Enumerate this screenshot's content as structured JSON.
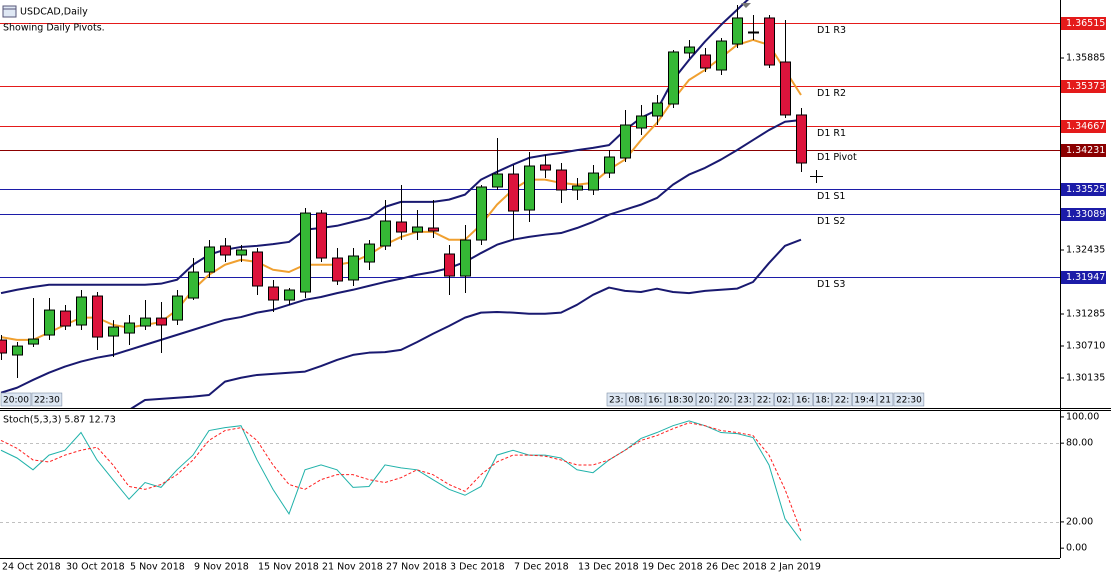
{
  "chart_data": [
    {
      "type": "candlestick",
      "title": "USDCAD,Daily",
      "subtitle": "Showing Daily Pivots.",
      "categories": [
        "24 Oct 2018",
        null,
        null,
        null,
        "30 Oct 2018",
        null,
        null,
        null,
        "5 Nov 2018",
        null,
        null,
        null,
        "9 Nov 2018",
        null,
        null,
        null,
        "15 Nov 2018",
        null,
        null,
        null,
        "21 Nov 2018",
        null,
        null,
        null,
        "27 Nov 2018",
        null,
        null,
        null,
        "3 Dec 2018",
        null,
        null,
        null,
        "7 Dec 2018",
        null,
        null,
        null,
        "13 Dec 2018",
        null,
        null,
        null,
        "19 Dec 2018",
        null,
        null,
        null,
        "26 Dec 2018",
        null,
        null,
        null,
        "2 Jan 2019",
        null,
        null
      ],
      "open": [
        1.30817,
        1.30548,
        1.30745,
        1.30907,
        1.31338,
        1.31087,
        1.31608,
        1.30889,
        1.30943,
        1.31069,
        1.31212,
        1.31176,
        1.31572,
        1.32039,
        1.32507,
        1.32345,
        1.32399,
        1.3177,
        1.31536,
        1.3168,
        1.33099,
        1.32291,
        1.31896,
        1.32219,
        1.32507,
        1.32938,
        1.32758,
        1.3283,
        1.32363,
        1.31967,
        1.32614,
        1.33567,
        1.338,
        1.33153,
        1.33962,
        1.33872,
        1.33513,
        1.33513,
        1.33818,
        1.34088,
        1.34627,
        1.34843,
        1.35058,
        1.35975,
        1.35939,
        1.35669,
        1.36136,
        1.36352,
        1.36604,
        1.35813,
        1.34861
      ],
      "high": [
        1.30907,
        1.30781,
        1.31572,
        1.31572,
        1.31446,
        1.31716,
        1.3168,
        1.31176,
        1.31266,
        1.31536,
        1.315,
        1.31716,
        1.32291,
        1.32614,
        1.3265,
        1.32525,
        1.32471,
        1.31896,
        1.31752,
        1.33189,
        1.33153,
        1.32471,
        1.32471,
        1.32614,
        1.33333,
        1.33603,
        1.33153,
        1.33333,
        1.32525,
        1.32884,
        1.33603,
        1.34447,
        1.33962,
        1.34196,
        1.34142,
        1.33998,
        1.33728,
        1.33962,
        1.34232,
        1.3495,
        1.3504,
        1.3522,
        1.36028,
        1.36208,
        1.36064,
        1.36244,
        1.36837,
        1.36657,
        1.36657,
        1.36568,
        1.34986
      ],
      "low": [
        1.30458,
        1.30135,
        1.30691,
        1.30817,
        1.30997,
        1.30997,
        1.30638,
        1.30512,
        1.30727,
        1.30997,
        1.30584,
        1.31087,
        1.31536,
        1.31931,
        1.32219,
        1.32219,
        1.31626,
        1.3132,
        1.31446,
        1.31572,
        1.32219,
        1.31806,
        1.31788,
        1.32075,
        1.32435,
        1.32614,
        1.32614,
        1.3265,
        1.31626,
        1.31662,
        1.32525,
        1.33513,
        1.32614,
        1.32938,
        1.33728,
        1.33279,
        1.33333,
        1.33423,
        1.33728,
        1.34016,
        1.34501,
        1.34681,
        1.34986,
        1.35885,
        1.35633,
        1.35579,
        1.36064,
        1.36208,
        1.35705,
        1.34807,
        1.33836
      ],
      "close": [
        1.30584,
        1.30709,
        1.30835,
        1.31356,
        1.31069,
        1.3159,
        1.30871,
        1.31051,
        1.31123,
        1.31212,
        1.31087,
        1.31608,
        1.32039,
        1.32489,
        1.32345,
        1.32435,
        1.31788,
        1.31536,
        1.31716,
        1.33099,
        1.32291,
        1.31878,
        1.32327,
        1.32542,
        1.32956,
        1.32758,
        1.32848,
        1.32776,
        1.31967,
        1.32614,
        1.33567,
        1.338,
        1.33135,
        1.33944,
        1.33872,
        1.33513,
        1.33585,
        1.33818,
        1.34106,
        1.34681,
        1.34843,
        1.35076,
        1.35993,
        1.36082,
        1.35705,
        1.3619,
        1.36604,
        1.36334,
        1.35759,
        1.34861,
        1.33998
      ],
      "up_color": "#35b835",
      "down_color": "#dc143c",
      "overlays": [
        {
          "color": "#191970",
          "values": [
            1.3166,
            1.3172,
            1.3177,
            1.3181,
            1.3181,
            1.3181,
            1.3181,
            1.3181,
            1.3181,
            1.3181,
            1.3183,
            1.319,
            1.3217,
            1.3235,
            1.3244,
            1.3249,
            1.3251,
            1.3254,
            1.3258,
            1.328,
            1.3283,
            1.3287,
            1.3294,
            1.3301,
            1.3321,
            1.333,
            1.333,
            1.333,
            1.3334,
            1.3343,
            1.337,
            1.3384,
            1.3397,
            1.3409,
            1.3414,
            1.3418,
            1.3423,
            1.3427,
            1.3432,
            1.3459,
            1.3481,
            1.3495,
            1.3549,
            1.3585,
            1.3618,
            1.3648,
            1.3675,
            1.3702,
            1.372,
            1.3729,
            1.3733
          ]
        },
        {
          "color": "#191970",
          "values": [
            1.2987,
            1.2996,
            1.301,
            1.3023,
            1.3034,
            1.3043,
            1.305,
            1.3055,
            1.3064,
            1.3073,
            1.3082,
            1.3091,
            1.31,
            1.3109,
            1.3118,
            1.3123,
            1.3131,
            1.3136,
            1.3145,
            1.3154,
            1.3159,
            1.3166,
            1.3172,
            1.3179,
            1.3186,
            1.3192,
            1.3199,
            1.3204,
            1.3211,
            1.3222,
            1.3238,
            1.3253,
            1.3262,
            1.3267,
            1.3271,
            1.3274,
            1.3283,
            1.3294,
            1.3307,
            1.3316,
            1.3325,
            1.3337,
            1.3361,
            1.3379,
            1.3391,
            1.3406,
            1.3423,
            1.3441,
            1.3459,
            1.3474,
            1.3477
          ]
        },
        {
          "color": "#191970",
          "values": [
            null,
            null,
            null,
            null,
            null,
            null,
            null,
            null,
            1.2956,
            1.2974,
            1.2976,
            1.2978,
            1.298,
            1.2983,
            1.3007,
            1.3014,
            1.3019,
            1.3021,
            1.3023,
            1.3025,
            1.3035,
            1.3046,
            1.3055,
            1.3059,
            1.306,
            1.3064,
            1.3078,
            1.3093,
            1.3107,
            1.3122,
            1.3131,
            1.3132,
            1.3131,
            1.3129,
            1.3129,
            1.3131,
            1.3145,
            1.3163,
            1.3176,
            1.317,
            1.3168,
            1.3174,
            1.3168,
            1.3166,
            1.317,
            1.3172,
            1.3174,
            1.3186,
            1.322,
            1.3251,
            1.3262
          ]
        },
        {
          "color": "#f0a030",
          "values": [
            1.3087,
            1.3082,
            1.3082,
            1.3095,
            1.3109,
            1.3122,
            1.3122,
            1.3109,
            1.3104,
            1.3109,
            1.3114,
            1.3136,
            1.3172,
            1.3199,
            1.3217,
            1.3226,
            1.3222,
            1.3208,
            1.3204,
            1.3217,
            1.3217,
            1.3217,
            1.3222,
            1.3235,
            1.3253,
            1.3267,
            1.3276,
            1.3276,
            1.3262,
            1.3262,
            1.3289,
            1.3325,
            1.3352,
            1.337,
            1.337,
            1.3364,
            1.3361,
            1.3364,
            1.3388,
            1.3406,
            1.3441,
            1.3472,
            1.3513,
            1.3549,
            1.3567,
            1.3589,
            1.3612,
            1.3621,
            1.3612,
            1.3567,
            1.3522
          ]
        }
      ],
      "pivots": [
        {
          "label": "D1 R3",
          "value": 1.36515,
          "color": "#e41a1a"
        },
        {
          "label": "D1 R2",
          "value": 1.35373,
          "color": "#e41a1a"
        },
        {
          "label": "D1 R1",
          "value": 1.34667,
          "color": "#e41a1a"
        },
        {
          "label": "D1 Pivot",
          "value": 1.34231,
          "color": "#8b0000"
        },
        {
          "label": "D1 S1",
          "value": 1.33525,
          "color": "#1c1ca8"
        },
        {
          "label": "D1 S2",
          "value": 1.33089,
          "color": "#1c1ca8"
        },
        {
          "label": "D1 S3",
          "value": 1.31947,
          "color": "#1c1ca8"
        }
      ],
      "ylim": [
        1.29596,
        1.36927
      ],
      "yticks": [
        1.35885,
        1.32435,
        1.31285,
        {
          "value": 1.3071,
          "label": "1.30710"
        },
        1.30135
      ],
      "time_tags": {
        "left": [
          "20:00",
          "22:30"
        ],
        "right": [
          "23:",
          "08:",
          "16:",
          "18:30",
          "20:",
          "20:",
          "23:",
          "22:",
          "02:",
          "16:",
          "18:",
          "22:",
          "19:4",
          "21",
          "22:30"
        ]
      }
    },
    {
      "type": "line",
      "title": "Stoch(5,3,3) 5.87 12.73",
      "ylim": [
        -7.5,
        104.5
      ],
      "yticks": [
        {
          "value": 100,
          "label": "100.00",
          "level": false
        },
        {
          "value": 80,
          "label": "80.00",
          "level": true
        },
        {
          "value": 20,
          "label": "20.00",
          "level": true
        },
        {
          "value": 0,
          "label": "0.00",
          "level": false
        }
      ],
      "series": [
        {
          "color": "#20b2aa",
          "dash": false,
          "values": [
            74.6,
            68.7,
            59.7,
            70.9,
            74.6,
            88.1,
            67.2,
            52.2,
            37.3,
            50,
            46.3,
            59.7,
            70.9,
            89.6,
            91.8,
            93.3,
            67.2,
            44.8,
            26.1,
            59.7,
            63.4,
            59.7,
            46.3,
            47,
            63.4,
            61.2,
            59.7,
            52.2,
            44.8,
            40.3,
            47,
            70.9,
            74.6,
            70.9,
            70.9,
            68.7,
            59.7,
            57.5,
            67.2,
            74.6,
            83.6,
            88.1,
            93.3,
            97,
            93.3,
            88.1,
            87.3,
            84.3,
            63.4,
            22.4,
            5.87
          ]
        },
        {
          "color": "#ff2020",
          "dash": true,
          "values": [
            82.1,
            76.1,
            67.2,
            65.7,
            70.9,
            74.6,
            76.9,
            63.4,
            47,
            44.8,
            48.5,
            56,
            67.2,
            82.1,
            89.6,
            91.8,
            82.1,
            63.4,
            48.5,
            44.8,
            52.2,
            56,
            56,
            52.2,
            50,
            53.7,
            59.7,
            56,
            48.5,
            43.3,
            56,
            65.7,
            70.9,
            70.9,
            70.1,
            67.2,
            63.4,
            63.4,
            67.2,
            74.6,
            82.1,
            85.8,
            91,
            95.5,
            93.3,
            89.6,
            88.1,
            85.8,
            70.9,
            44.8,
            12.73
          ]
        }
      ]
    }
  ]
}
